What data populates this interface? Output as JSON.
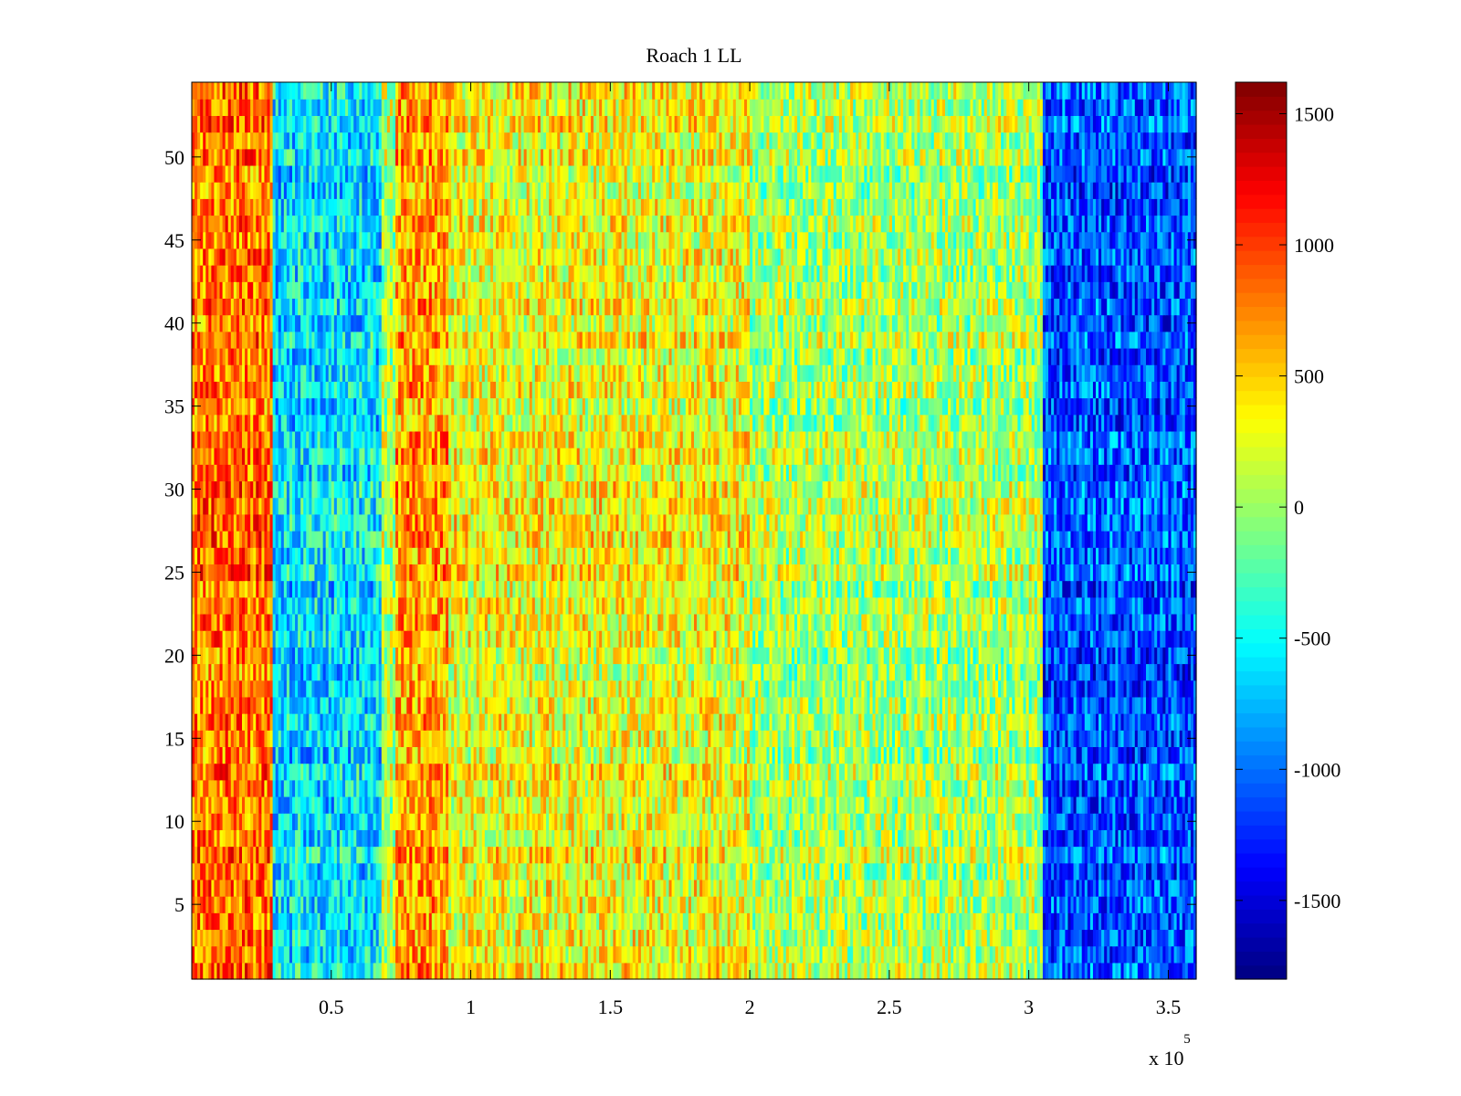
{
  "chart_data": {
    "type": "heatmap",
    "title": "Roach 1 LL",
    "xlabel": "",
    "ylabel": "",
    "xlim": [
      0,
      360000
    ],
    "ylim": [
      0.5,
      54.5
    ],
    "x_ticks": [
      50000,
      100000,
      150000,
      200000,
      250000,
      300000,
      350000
    ],
    "x_tick_labels": [
      "0.5",
      "1",
      "1.5",
      "2",
      "2.5",
      "3",
      "3.5"
    ],
    "x_exponent_base": "x 10",
    "x_exponent_power": "5",
    "y_ticks": [
      5,
      10,
      15,
      20,
      25,
      30,
      35,
      40,
      45,
      50
    ],
    "y_tick_labels": [
      "5",
      "10",
      "15",
      "20",
      "25",
      "30",
      "35",
      "40",
      "45",
      "50"
    ],
    "rows": 54,
    "colormap": "jet",
    "clim": [
      -1800,
      1620
    ],
    "colorbar": {
      "ticks": [
        1500,
        1000,
        500,
        0,
        -500,
        -1000,
        -1500
      ],
      "tick_labels": [
        "1500",
        "1000",
        "500",
        "0",
        "-500",
        "-1000",
        "-1500"
      ]
    },
    "column_bands": [
      {
        "x_start": 0,
        "x_end": 29000,
        "mean_value": 800
      },
      {
        "x_start": 29000,
        "x_end": 68000,
        "mean_value": -600
      },
      {
        "x_start": 68000,
        "x_end": 73000,
        "mean_value": 50
      },
      {
        "x_start": 73000,
        "x_end": 92000,
        "mean_value": 650
      },
      {
        "x_start": 92000,
        "x_end": 200000,
        "mean_value": 300
      },
      {
        "x_start": 200000,
        "x_end": 305000,
        "mean_value": 50
      },
      {
        "x_start": 305000,
        "x_end": 360000,
        "mean_value": -1100
      }
    ],
    "noise_amplitude": 600,
    "grid": false,
    "legend": "colorbar-right"
  }
}
